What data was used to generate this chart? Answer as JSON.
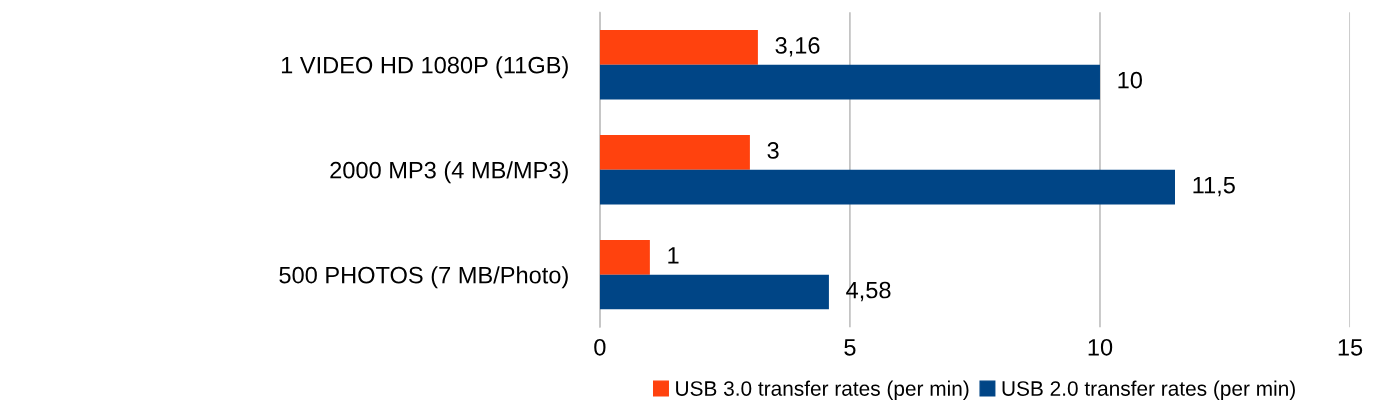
{
  "chart_data": {
    "type": "bar",
    "orientation": "horizontal",
    "categories": [
      "1 VIDEO HD 1080P (11GB)",
      "2000 MP3 (4 MB/MP3)",
      "500 PHOTOS (7 MB/Photo)"
    ],
    "series": [
      {
        "name": "USB 3.0 transfer rates (per min)",
        "color": "#ff420e",
        "values": [
          3.16,
          3,
          1
        ],
        "value_labels": [
          "3,16",
          "3",
          "1"
        ]
      },
      {
        "name": "USB 2.0 transfer rates (per min)",
        "color": "#004586",
        "values": [
          10,
          11.5,
          4.58
        ],
        "value_labels": [
          "10",
          "11,5",
          "4,58"
        ]
      }
    ],
    "xlim": [
      0,
      15
    ],
    "xticks": [
      0,
      5,
      10,
      15
    ],
    "grid": "x",
    "legend": "bottom"
  }
}
